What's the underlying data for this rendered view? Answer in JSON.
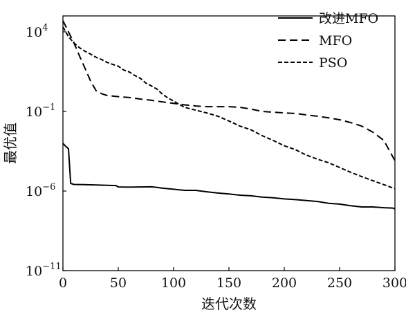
{
  "chart_data": {
    "type": "line",
    "xlabel": "迭代次数",
    "ylabel": "最优值",
    "xlim": [
      0,
      300
    ],
    "ylim": [
      1e-11,
      100000.0
    ],
    "yscale": "log",
    "grid": false,
    "legend_placement": "top-right",
    "x_ticks": [
      0,
      50,
      100,
      150,
      200,
      250,
      300
    ],
    "x_tick_labels": [
      "0",
      "50",
      "100",
      "150",
      "200",
      "250",
      "300"
    ],
    "y_ticks": [
      10000,
      0.1,
      1e-06,
      1e-11
    ],
    "y_tick_labels": [
      {
        "base": "10",
        "exp": "4"
      },
      {
        "base": "10",
        "exp": "−1"
      },
      {
        "base": "10",
        "exp": "−6"
      },
      {
        "base": "10",
        "exp": "−11"
      }
    ],
    "series": [
      {
        "name": "改进MFO",
        "color": "#000000",
        "dash": "solid",
        "x": [
          0,
          2,
          5,
          7,
          10,
          20,
          30,
          40,
          48,
          50,
          60,
          70,
          80,
          85,
          90,
          100,
          110,
          120,
          130,
          140,
          150,
          160,
          170,
          180,
          190,
          200,
          210,
          220,
          230,
          240,
          250,
          260,
          270,
          280,
          290,
          298,
          300
        ],
        "y": [
          0.001,
          0.0007,
          0.00045,
          3e-06,
          2.6e-06,
          2.5e-06,
          2.4e-06,
          2.3e-06,
          2.2e-06,
          1.8e-06,
          1.75e-06,
          1.8e-06,
          1.85e-06,
          1.7e-06,
          1.5e-06,
          1.3e-06,
          1.1e-06,
          1.1e-06,
          9e-07,
          7.5e-07,
          6.5e-07,
          5.5e-07,
          5e-07,
          4.2e-07,
          3.8e-07,
          3.2e-07,
          2.9e-07,
          2.5e-07,
          2.2e-07,
          1.7e-07,
          1.5e-07,
          1.2e-07,
          1e-07,
          1e-07,
          9e-08,
          8.5e-08,
          7.5e-08
        ]
      },
      {
        "name": "MFO",
        "color": "#000000",
        "dash": "long",
        "x": [
          0,
          5,
          10,
          15,
          20,
          25,
          30,
          35,
          40,
          50,
          60,
          70,
          80,
          90,
          100,
          110,
          120,
          130,
          140,
          150,
          160,
          170,
          180,
          190,
          200,
          210,
          220,
          230,
          240,
          250,
          260,
          270,
          280,
          290,
          300
        ],
        "y": [
          50000,
          10000,
          2000,
          300,
          50,
          8,
          2,
          1.3,
          1,
          0.85,
          0.75,
          0.6,
          0.5,
          0.4,
          0.32,
          0.26,
          0.22,
          0.2,
          0.2,
          0.2,
          0.18,
          0.14,
          0.1,
          0.09,
          0.08,
          0.075,
          0.06,
          0.05,
          0.04,
          0.03,
          0.02,
          0.012,
          0.005,
          0.0015,
          8e-05
        ]
      },
      {
        "name": "PSO",
        "color": "#000000",
        "dash": "short",
        "x": [
          0,
          5,
          10,
          15,
          20,
          25,
          30,
          35,
          40,
          45,
          50,
          55,
          60,
          65,
          70,
          75,
          80,
          85,
          90,
          95,
          100,
          105,
          110,
          120,
          130,
          140,
          150,
          160,
          170,
          180,
          190,
          200,
          210,
          220,
          230,
          240,
          250,
          260,
          270,
          280,
          290,
          300
        ],
        "y": [
          20000,
          5000,
          2000,
          1000,
          600,
          400,
          250,
          180,
          120,
          90,
          70,
          40,
          30,
          18,
          12,
          6,
          4,
          2.5,
          1.2,
          0.7,
          0.45,
          0.28,
          0.18,
          0.12,
          0.08,
          0.05,
          0.025,
          0.012,
          0.007,
          0.003,
          0.0015,
          0.0007,
          0.0004,
          0.00018,
          0.0001,
          6e-05,
          3e-05,
          1.5e-05,
          8e-06,
          4.5e-06,
          2.5e-06,
          1.4e-06
        ]
      }
    ]
  }
}
